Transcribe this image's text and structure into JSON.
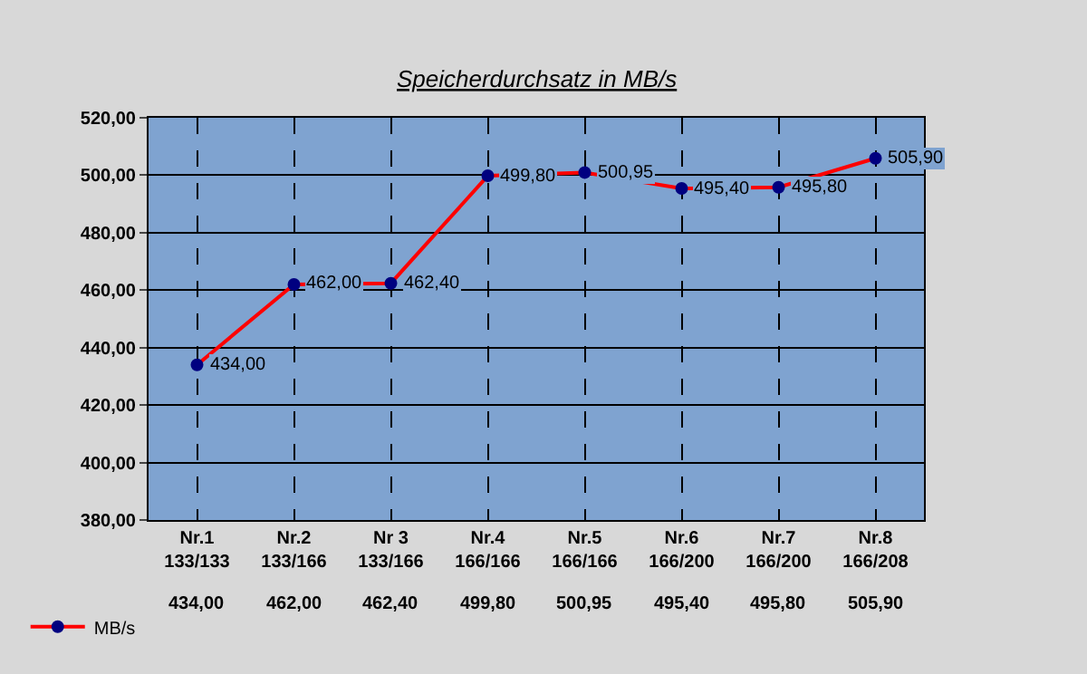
{
  "chart_data": {
    "type": "line",
    "title": "Speicherdurchsatz in MB/s",
    "categories": [
      "Nr.1\n133/133",
      "Nr.2\n133/166",
      "Nr 3\n133/166",
      "Nr.4\n166/166",
      "Nr.5\n166/166",
      "Nr.6\n166/200",
      "Nr.7\n166/200",
      "Nr.8\n166/208"
    ],
    "series": [
      {
        "name": "MB/s",
        "color": "#ff0000",
        "values": [
          434.0,
          462.0,
          462.4,
          499.8,
          500.95,
          495.4,
          495.8,
          505.9
        ],
        "value_labels": [
          "434,00",
          "462,00",
          "462,40",
          "499,80",
          "500,95",
          "495,40",
          "495,80",
          "505,90"
        ]
      }
    ],
    "ylim": [
      380,
      520
    ],
    "yticks": [
      {
        "value": 380,
        "label": "380,00"
      },
      {
        "value": 400,
        "label": "400,00"
      },
      {
        "value": 420,
        "label": "420,00"
      },
      {
        "value": 440,
        "label": "440,00"
      },
      {
        "value": 460,
        "label": "460,00"
      },
      {
        "value": 480,
        "label": "480,00"
      },
      {
        "value": 500,
        "label": "500,00"
      },
      {
        "value": 520,
        "label": "520,00"
      }
    ],
    "grid": true,
    "marker": "circle",
    "line_style": "solid",
    "legend": "bottom left"
  }
}
